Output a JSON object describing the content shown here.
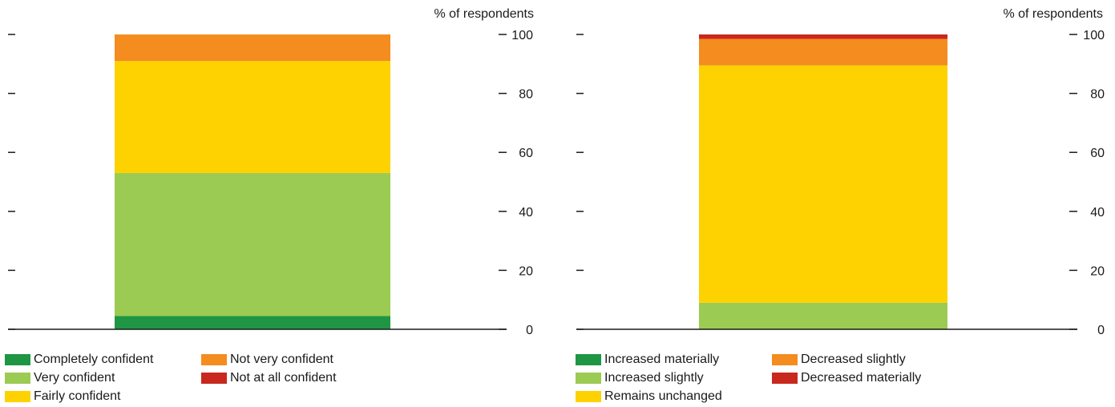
{
  "chart_data": [
    {
      "type": "bar",
      "stacked": true,
      "ylabel": "% of respondents",
      "ylim": [
        0,
        100
      ],
      "yticks": [
        0,
        20,
        40,
        60,
        80,
        100
      ],
      "categories": [
        ""
      ],
      "legend_position": "bottom",
      "series": [
        {
          "name": "Completely confident",
          "color": "#1e9643",
          "values": [
            4.5
          ]
        },
        {
          "name": "Very confident",
          "color": "#9bcb53",
          "values": [
            48.5
          ]
        },
        {
          "name": "Fairly confident",
          "color": "#fed200",
          "values": [
            38
          ]
        },
        {
          "name": "Not very confident",
          "color": "#f58c1f",
          "values": [
            9
          ]
        },
        {
          "name": "Not at all confident",
          "color": "#c8281e",
          "values": [
            0
          ]
        }
      ]
    },
    {
      "type": "bar",
      "stacked": true,
      "ylabel": "% of respondents",
      "ylim": [
        0,
        100
      ],
      "yticks": [
        0,
        20,
        40,
        60,
        80,
        100
      ],
      "categories": [
        ""
      ],
      "legend_position": "bottom",
      "series": [
        {
          "name": "Increased materially",
          "color": "#1e9643",
          "values": [
            0
          ]
        },
        {
          "name": "Increased slightly",
          "color": "#9bcb53",
          "values": [
            9
          ]
        },
        {
          "name": "Remains unchanged",
          "color": "#fed200",
          "values": [
            80.5
          ]
        },
        {
          "name": "Decreased slightly",
          "color": "#f58c1f",
          "values": [
            9
          ]
        },
        {
          "name": "Decreased materially",
          "color": "#c8281e",
          "values": [
            1.5
          ]
        }
      ]
    }
  ]
}
